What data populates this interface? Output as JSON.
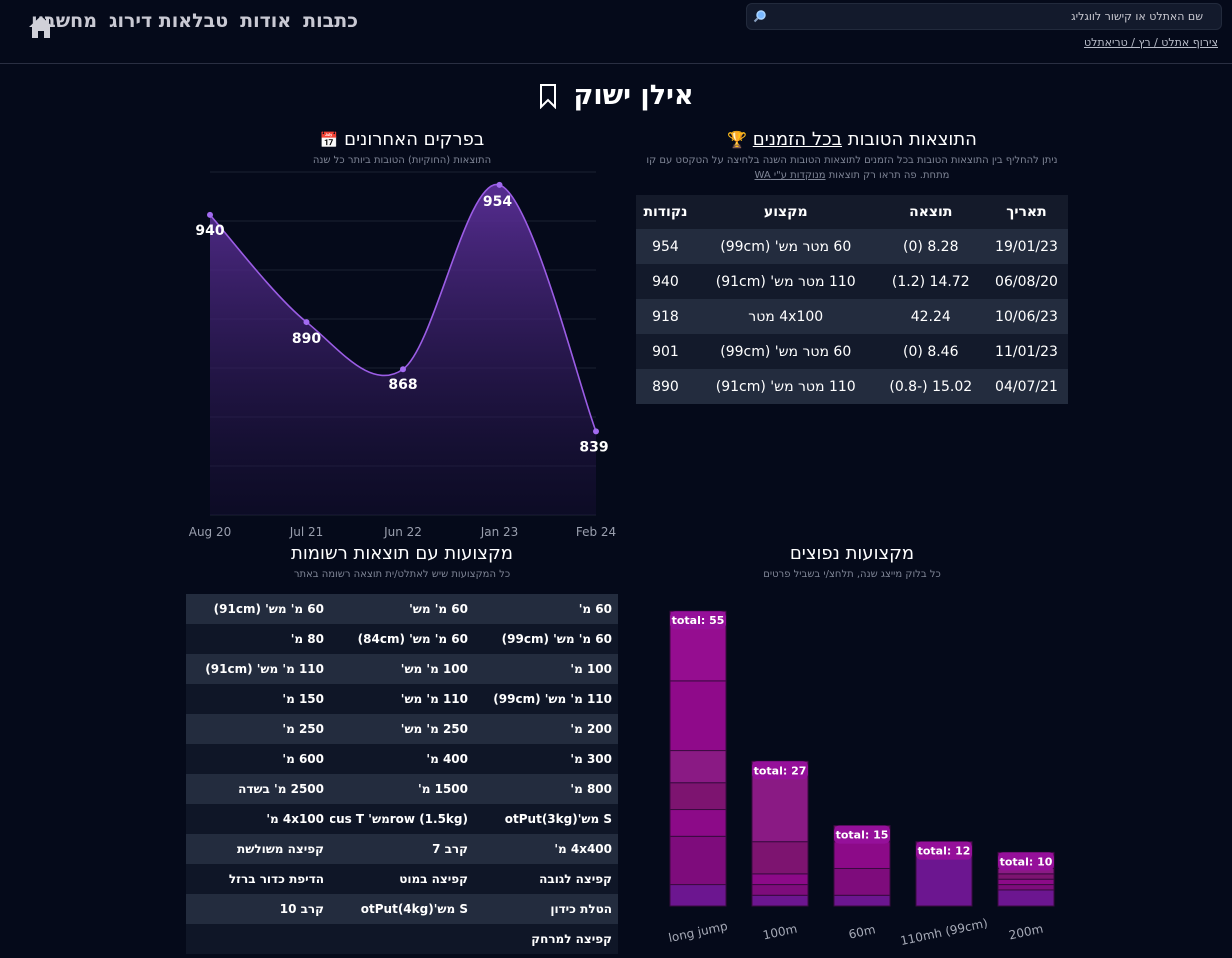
{
  "nav": {
    "items": [
      {
        "label": "כתבות"
      },
      {
        "label": "אודות"
      },
      {
        "label": "טבלאות דירוג"
      },
      {
        "label": "מחשבון"
      }
    ],
    "home_icon": "home-icon"
  },
  "search": {
    "placeholder": "שם האתלט או קישור לווגליג",
    "icon": "search-icon"
  },
  "join_link": "צירוף אתלט / רץ / טריאתלט",
  "athlete": {
    "name": "אילן ישוק",
    "icon": "bookmark-icon"
  },
  "best": {
    "title_prefix": "התוצאות הטובות",
    "title_link": "בכל הזמנים",
    "icon": "trophy-icon",
    "subtitle_1": "ניתן להחליף בין התוצאות הטובות בכל הזמנים לתוצאות הטובות השנה בלחיצה על הטקסט עם קו",
    "subtitle_2": "מתחת. פה תראו רק תוצאות",
    "subtitle_link": "מנוקדות ע\"י WA",
    "headers": [
      "תאריך",
      "תוצאה",
      "מקצוע",
      "נקודות"
    ],
    "rows": [
      [
        "19/01/23",
        "8.28 (0)",
        "60 מטר מש' (99cm)",
        "954"
      ],
      [
        "06/08/20",
        "14.72 (1.2)",
        "110 מטר מש' (91cm)",
        "940"
      ],
      [
        "10/06/23",
        "42.24",
        "4x100 מטר",
        "918"
      ],
      [
        "11/01/23",
        "8.46 (0)",
        "60 מטר מש' (99cm)",
        "901"
      ],
      [
        "04/07/21",
        "15.02 (-0.8)",
        "110 מטר מש' (91cm)",
        "890"
      ]
    ]
  },
  "recent": {
    "title": "בפרקים האחרונים",
    "icon": "calendar-icon",
    "subtitle": "התוצאות (החוקיות) הטובות ביותר כל שנה"
  },
  "events": {
    "title": "מקצועות עם תוצאות רשומות",
    "subtitle": "כל המקצועות שיש לאתלט/ית תוצאה רשומה באתר",
    "rows": [
      [
        "60 מ'",
        "60 מ' מש'",
        "60 מ' מש' (91cm)"
      ],
      [
        "60 מ' מש' (99cm)",
        "60 מ' מש' (84cm)",
        "80 מ'"
      ],
      [
        "100 מ'",
        "100 מ' מש'",
        "110 מ' מש' (91cm)"
      ],
      [
        "110 מ' מש' (99cm)",
        "110 מ' מש'",
        "150 מ'"
      ],
      [
        "200 מ'",
        "250 מ' מש'",
        "250 מ'"
      ],
      [
        "300 מ'",
        "400 מ'",
        "600 מ'"
      ],
      [
        "800 מ'",
        "1500 מ'",
        "2500 מ' בשדה"
      ],
      [
        "S מש'(3kg)otPut",
        "row (1.5kg)מש' Discus T",
        "4x100 מ'"
      ],
      [
        "4x400 מ'",
        "קרב 7",
        "קפיצה משולשת"
      ],
      [
        "קפיצה לגובה",
        "קפיצה במוט",
        "הדיפת כדור ברזל"
      ],
      [
        "הטלת כידון",
        "S מש'(4kg)otPut",
        "קרב 10"
      ],
      [
        "קפיצה למרחק",
        "",
        ""
      ]
    ]
  },
  "popular": {
    "title": "מקצועות נפוצים",
    "subtitle": "כל בלוק מייצג שנה, תלחצ/י בשביל פרטים"
  },
  "chart_data": [
    {
      "type": "area",
      "x": [
        "Aug 20",
        "Jul 21",
        "Jun 22",
        "Jan 23",
        "Feb 24"
      ],
      "values": [
        940,
        890,
        868,
        954,
        839
      ],
      "ylim": [
        800,
        960
      ],
      "grid": true,
      "color": "#9b5de5"
    },
    {
      "type": "bar",
      "categories": [
        "long jump",
        "100m",
        "60m",
        "110mh (99cm)",
        "200m"
      ],
      "totals": [
        55,
        27,
        15,
        12,
        10
      ],
      "total_prefix": "total: ",
      "segments": [
        [
          4,
          9,
          5,
          5,
          6,
          13,
          13
        ],
        [
          2,
          2,
          2,
          6,
          15
        ],
        [
          2,
          5,
          5,
          3
        ],
        [
          10,
          2
        ],
        [
          3,
          1,
          1,
          1,
          1,
          3
        ]
      ],
      "colors": [
        "#6c1690",
        "#7e0c7c",
        "#8c0a88",
        "#7d1470",
        "#8a1a84",
        "#8f0a8a",
        "#950d90"
      ]
    }
  ]
}
